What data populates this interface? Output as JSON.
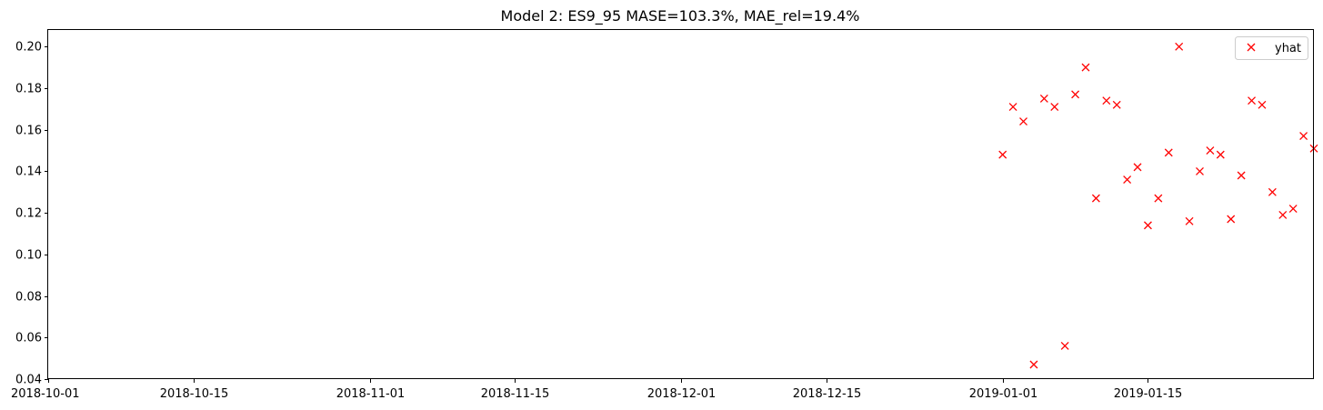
{
  "chart_data": {
    "type": "scatter",
    "title": "Model 2: ES9_95 MASE=103.3%, MAE_rel=19.4%",
    "xlabel": "",
    "ylabel": "",
    "x_type": "date",
    "xlim": [
      "2018-10-01",
      "2019-01-31"
    ],
    "ylim": [
      0.04,
      0.208
    ],
    "grid": false,
    "legend_position": "top-right",
    "x_ticks": [
      "2018-10-01",
      "2018-10-15",
      "2018-11-01",
      "2018-11-15",
      "2018-12-01",
      "2018-12-15",
      "2019-01-01",
      "2019-01-15"
    ],
    "y_ticks": [
      "0.04",
      "0.06",
      "0.08",
      "0.10",
      "0.12",
      "0.14",
      "0.16",
      "0.18",
      "0.20"
    ],
    "series": [
      {
        "name": "yhat",
        "color": "#ff0000",
        "marker": "x",
        "points": [
          {
            "x": "2019-01-01",
            "y": 0.148
          },
          {
            "x": "2019-01-02",
            "y": 0.171
          },
          {
            "x": "2019-01-03",
            "y": 0.164
          },
          {
            "x": "2019-01-04",
            "y": 0.047
          },
          {
            "x": "2019-01-05",
            "y": 0.175
          },
          {
            "x": "2019-01-06",
            "y": 0.171
          },
          {
            "x": "2019-01-07",
            "y": 0.056
          },
          {
            "x": "2019-01-08",
            "y": 0.177
          },
          {
            "x": "2019-01-09",
            "y": 0.19
          },
          {
            "x": "2019-01-10",
            "y": 0.127
          },
          {
            "x": "2019-01-11",
            "y": 0.174
          },
          {
            "x": "2019-01-12",
            "y": 0.172
          },
          {
            "x": "2019-01-13",
            "y": 0.136
          },
          {
            "x": "2019-01-14",
            "y": 0.142
          },
          {
            "x": "2019-01-15",
            "y": 0.114
          },
          {
            "x": "2019-01-16",
            "y": 0.127
          },
          {
            "x": "2019-01-17",
            "y": 0.149
          },
          {
            "x": "2019-01-18",
            "y": 0.2
          },
          {
            "x": "2019-01-19",
            "y": 0.116
          },
          {
            "x": "2019-01-20",
            "y": 0.14
          },
          {
            "x": "2019-01-21",
            "y": 0.15
          },
          {
            "x": "2019-01-22",
            "y": 0.148
          },
          {
            "x": "2019-01-23",
            "y": 0.117
          },
          {
            "x": "2019-01-24",
            "y": 0.138
          },
          {
            "x": "2019-01-25",
            "y": 0.174
          },
          {
            "x": "2019-01-26",
            "y": 0.172
          },
          {
            "x": "2019-01-27",
            "y": 0.13
          },
          {
            "x": "2019-01-28",
            "y": 0.119
          },
          {
            "x": "2019-01-29",
            "y": 0.122
          },
          {
            "x": "2019-01-30",
            "y": 0.157
          },
          {
            "x": "2019-01-31",
            "y": 0.151
          }
        ]
      }
    ]
  }
}
